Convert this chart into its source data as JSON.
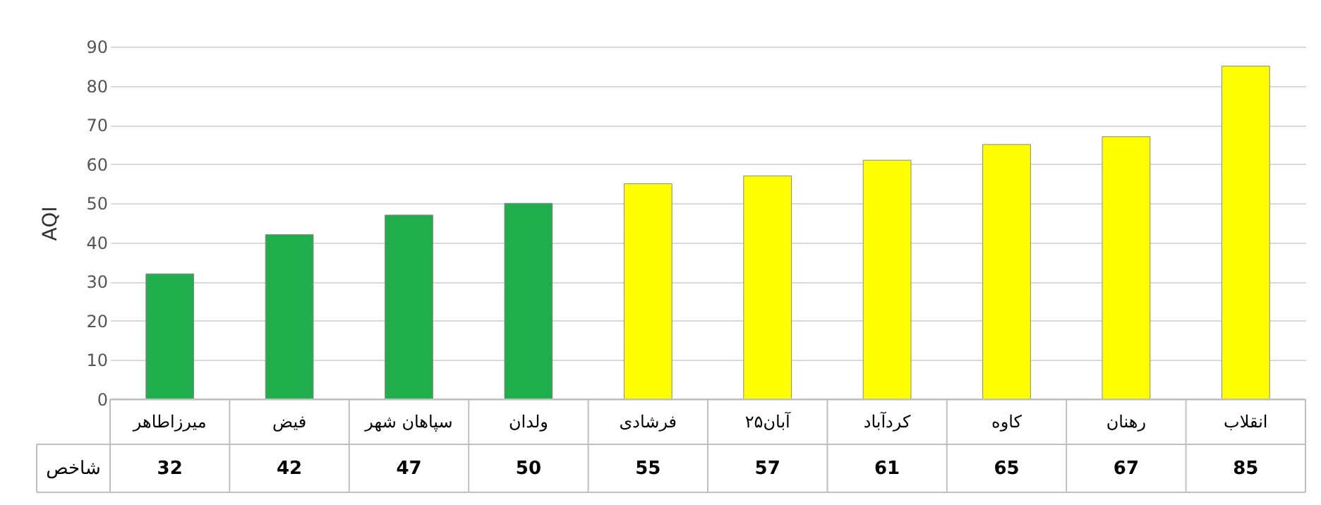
{
  "chart_data": {
    "type": "bar",
    "ylabel": "AQI",
    "categories": [
      "میرزاطاهر",
      "فیض",
      "سپاهان شهر",
      "ولدان",
      "فرشادی",
      "۲۵آبان",
      "کردآباد",
      "کاوه",
      "رهنان",
      "انقلاب"
    ],
    "series": [
      {
        "name": "شاخص",
        "values": [
          32,
          42,
          47,
          50,
          55,
          57,
          61,
          65,
          67,
          85
        ],
        "colors": [
          "#1fae4b",
          "#1fae4b",
          "#1fae4b",
          "#1fae4b",
          "#ffff00",
          "#ffff00",
          "#ffff00",
          "#ffff00",
          "#ffff00",
          "#ffff00"
        ]
      }
    ],
    "ylim": [
      0,
      90
    ],
    "yticks": [
      0,
      10,
      20,
      30,
      40,
      50,
      60,
      70,
      80,
      90
    ],
    "grid": true,
    "data_labels": true
  }
}
